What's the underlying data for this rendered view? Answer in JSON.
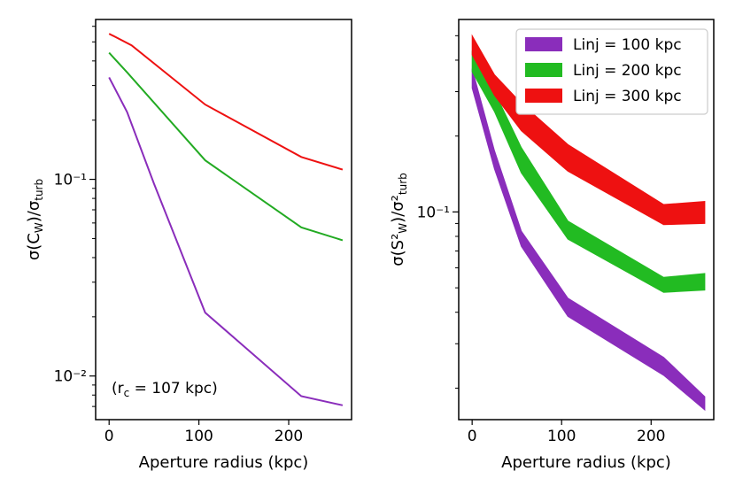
{
  "chart_data": [
    {
      "type": "line",
      "xlabel": "Aperture radius (kpc)",
      "ylabel": "σ(C_W)/σ_turb",
      "yscale": "log",
      "xlim": [
        -15,
        270
      ],
      "ylim": [
        0.006,
        0.65
      ],
      "xticks": [
        0,
        100,
        200
      ],
      "xtick_labels": [
        "0",
        "100",
        "200"
      ],
      "yticks": [
        0.01,
        0.1
      ],
      "ytick_labels": [
        "10⁻²",
        "10⁻¹"
      ],
      "grid": false,
      "annotation": "(r_c = 107 kpc)",
      "series": [
        {
          "color": "#ee1111",
          "x": [
            0,
            25,
            107,
            214,
            260
          ],
          "y": [
            0.55,
            0.48,
            0.24,
            0.13,
            0.112
          ]
        },
        {
          "color": "#22aa22",
          "x": [
            0,
            20,
            107,
            214,
            260
          ],
          "y": [
            0.44,
            0.35,
            0.125,
            0.057,
            0.049
          ]
        },
        {
          "color": "#8a2dbb",
          "x": [
            0,
            20,
            50,
            107,
            214,
            260
          ],
          "y": [
            0.33,
            0.22,
            0.095,
            0.021,
            0.0079,
            0.0071
          ]
        }
      ]
    },
    {
      "type": "area",
      "xlabel": "Aperture radius (kpc)",
      "ylabel": "σ(S²_W)/σ²_turb",
      "yscale": "log",
      "xlim": [
        -15,
        270
      ],
      "ylim": [
        0.015,
        0.58
      ],
      "xticks": [
        0,
        100,
        200
      ],
      "xtick_labels": [
        "0",
        "100",
        "200"
      ],
      "yticks": [
        0.1
      ],
      "ytick_labels": [
        "10⁻¹"
      ],
      "grid": false,
      "legend": "top-right",
      "series": [
        {
          "name": "Linj = 100 kpc",
          "color": "#8a2dbb",
          "x": [
            0,
            25,
            55,
            107,
            214,
            260
          ],
          "y_low": [
            0.31,
            0.148,
            0.073,
            0.0385,
            0.0225,
            0.0164
          ],
          "y_high": [
            0.37,
            0.175,
            0.084,
            0.0455,
            0.0265,
            0.0185
          ]
        },
        {
          "name": "Linj = 200 kpc",
          "color": "#22bb22",
          "x": [
            0,
            25,
            55,
            107,
            214,
            260
          ],
          "y_low": [
            0.36,
            0.25,
            0.143,
            0.078,
            0.048,
            0.049
          ],
          "y_high": [
            0.43,
            0.3,
            0.18,
            0.092,
            0.055,
            0.057
          ]
        },
        {
          "name": "Linj = 300 kpc",
          "color": "#ee1111",
          "x": [
            0,
            25,
            55,
            107,
            214,
            260
          ],
          "y_low": [
            0.42,
            0.29,
            0.21,
            0.145,
            0.089,
            0.09
          ],
          "y_high": [
            0.5,
            0.35,
            0.27,
            0.185,
            0.107,
            0.11
          ]
        }
      ]
    }
  ]
}
